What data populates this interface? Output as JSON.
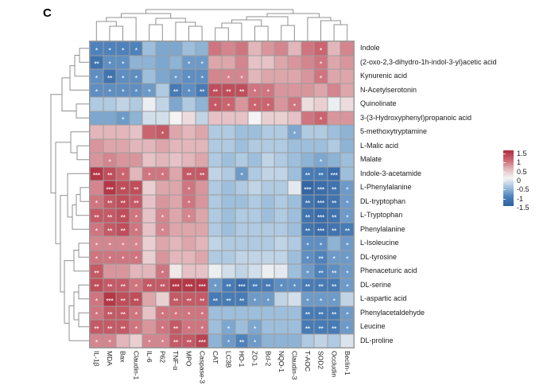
{
  "panel_label": "C",
  "chart_data": {
    "type": "heatmap",
    "title": "",
    "clustered": {
      "rows": true,
      "columns": true
    },
    "columns": [
      "IL-1β",
      "MDA",
      "Bax",
      "Claudin-1",
      "IL-6",
      "P62",
      "TNF-α",
      "MPO",
      "Caspase-3",
      "CAT",
      "LC3B",
      "HO-1",
      "ZO-1",
      "Bcl-2",
      "NQO-1",
      "Claudin-3",
      "T-AOC",
      "SOD2",
      "Occludin",
      "Beclin-1"
    ],
    "rows": [
      "Indole",
      "(2-oxo-2,3-dihydro-1h-indol-3-yl)acetic acid",
      "Kynurenic acid",
      "N-Acetylserotonin",
      "Quinolinate",
      "3-(3-Hydroxyphenyl)propanoic acid",
      "5-methoxytryptamine",
      "L-Malic acid",
      "Malate",
      "Indole-3-acetamide",
      "L-Phenylalanine",
      "DL-tryptophan",
      "L-Tryptophan",
      "Phenylalanine",
      "L-Isoleucine",
      "DL-tyrosine",
      "Phenaceturic acid",
      "DL-serine",
      "L-aspartic acid",
      "Phenylacetaldehyde",
      "Leucine",
      "DL-proline"
    ],
    "values": [
      [
        -1.0,
        -1.0,
        -1.0,
        -1.0,
        -0.5,
        -0.7,
        -0.7,
        -0.5,
        -0.6,
        0.9,
        0.8,
        0.9,
        0.5,
        0.7,
        0.8,
        0.5,
        0.9,
        1.0,
        0.5,
        0.8
      ],
      [
        -1.2,
        -0.9,
        -0.9,
        -0.6,
        -0.6,
        -0.7,
        -0.6,
        -0.8,
        -0.8,
        0.6,
        0.6,
        0.8,
        0.4,
        0.4,
        0.6,
        0.7,
        0.8,
        0.9,
        0.6,
        0.7
      ],
      [
        -0.9,
        -1.2,
        -0.9,
        -0.9,
        -0.5,
        -0.7,
        -0.8,
        -0.9,
        -0.9,
        0.8,
        0.8,
        0.8,
        0.5,
        0.6,
        0.6,
        0.6,
        0.7,
        0.9,
        0.6,
        0.6
      ],
      [
        -0.9,
        -0.9,
        -0.9,
        -0.9,
        -0.8,
        -0.4,
        -1.1,
        -0.9,
        -1.1,
        1.2,
        1.2,
        1.2,
        0.9,
        0.9,
        0.7,
        0.7,
        0.7,
        0.6,
        0.8,
        0.6
      ],
      [
        -0.4,
        -0.4,
        -0.3,
        -0.4,
        -0.05,
        -0.3,
        -0.7,
        -0.4,
        -0.6,
        1.1,
        1.0,
        0.7,
        1.0,
        1.0,
        0.7,
        0.9,
        0.2,
        0.3,
        -0.05,
        0.2
      ],
      [
        -0.7,
        -0.7,
        -0.8,
        -0.6,
        -0.2,
        -0.2,
        0.0,
        0.2,
        -0.3,
        0.4,
        0.4,
        0.4,
        0.0,
        0.3,
        0.3,
        0.4,
        0.9,
        1.0,
        0.7,
        0.7
      ],
      [
        0.5,
        0.5,
        0.5,
        0.4,
        1.0,
        1.1,
        0.6,
        0.5,
        0.6,
        -0.4,
        -0.4,
        -0.5,
        -0.5,
        -0.4,
        -0.4,
        -0.7,
        -0.4,
        -0.4,
        -0.5,
        -0.6
      ],
      [
        0.7,
        0.6,
        0.6,
        0.5,
        0.5,
        0.6,
        0.5,
        0.5,
        0.5,
        -0.4,
        -0.4,
        -0.5,
        -0.4,
        -0.4,
        -0.4,
        -0.5,
        -0.5,
        -0.5,
        -0.4,
        -0.6
      ],
      [
        0.7,
        0.8,
        0.7,
        0.7,
        0.4,
        0.5,
        0.4,
        0.5,
        0.6,
        -0.4,
        -0.5,
        -0.4,
        -0.5,
        -0.3,
        -0.4,
        -0.5,
        -0.6,
        -0.7,
        -0.6,
        -0.5
      ],
      [
        1.4,
        1.2,
        1.0,
        0.5,
        0.9,
        0.9,
        0.6,
        1.1,
        1.1,
        -0.3,
        -0.4,
        -0.8,
        -0.4,
        -0.3,
        -0.3,
        -0.5,
        -1.1,
        -1.1,
        -1.3,
        -0.5
      ],
      [
        0.8,
        1.4,
        1.2,
        1.2,
        0.3,
        0.6,
        0.6,
        0.9,
        0.7,
        -0.4,
        -0.5,
        -0.4,
        -0.3,
        -0.4,
        -0.4,
        -0.1,
        -1.4,
        -1.3,
        -1.2,
        -0.8
      ],
      [
        0.9,
        1.1,
        1.2,
        1.1,
        0.4,
        0.7,
        0.6,
        0.9,
        0.7,
        -0.4,
        -0.5,
        -0.5,
        -0.4,
        -0.5,
        -0.4,
        -0.5,
        -1.2,
        -1.3,
        -1.2,
        -0.8
      ],
      [
        1.1,
        1.1,
        1.2,
        0.9,
        0.4,
        0.8,
        0.6,
        0.8,
        0.6,
        -0.4,
        -0.5,
        -0.4,
        -0.4,
        -0.5,
        -0.4,
        -0.5,
        -1.2,
        -1.3,
        -1.2,
        -0.8
      ],
      [
        0.9,
        1.1,
        1.2,
        0.9,
        0.4,
        0.8,
        0.6,
        0.6,
        0.6,
        -0.4,
        -0.5,
        -0.4,
        -0.4,
        -0.4,
        -0.4,
        -0.5,
        -1.2,
        -1.3,
        -1.2,
        -1.1
      ],
      [
        0.8,
        0.8,
        0.8,
        0.8,
        0.3,
        0.6,
        0.5,
        0.6,
        0.5,
        -0.3,
        -0.4,
        -0.4,
        -0.4,
        -0.4,
        -0.3,
        -0.4,
        -0.9,
        -0.9,
        -0.6,
        -0.8
      ],
      [
        0.9,
        0.9,
        0.9,
        0.9,
        0.3,
        0.7,
        0.5,
        0.5,
        0.6,
        -0.4,
        -0.4,
        -0.3,
        -0.3,
        -0.3,
        -0.3,
        -0.5,
        -0.9,
        -1.0,
        -0.8,
        -0.8
      ],
      [
        1.1,
        0.7,
        0.7,
        0.5,
        0.5,
        0.9,
        0.1,
        0.4,
        0.4,
        -0.05,
        -0.2,
        -0.3,
        -0.2,
        -0.05,
        -0.1,
        -0.5,
        -0.8,
        -1.0,
        -0.9,
        -0.8
      ],
      [
        1.2,
        1.1,
        1.1,
        0.9,
        1.1,
        1.1,
        1.4,
        1.4,
        1.4,
        -0.8,
        -1.1,
        -1.3,
        -1.1,
        -1.1,
        -0.9,
        -0.9,
        -1.1,
        -1.1,
        -1.1,
        -0.8
      ],
      [
        0.9,
        1.4,
        1.2,
        1.2,
        0.6,
        0.3,
        1.1,
        1.1,
        1.1,
        -1.1,
        -1.1,
        -1.1,
        -0.8,
        -0.8,
        -0.3,
        -0.2,
        -0.8,
        -0.8,
        -0.8,
        -0.3
      ],
      [
        0.9,
        1.1,
        1.1,
        0.9,
        0.4,
        0.9,
        0.9,
        0.9,
        0.9,
        -0.5,
        -0.5,
        -0.5,
        -0.5,
        -0.5,
        -0.5,
        -0.5,
        -1.1,
        -1.1,
        -1.1,
        -0.8
      ],
      [
        1.1,
        1.1,
        1.1,
        0.9,
        0.7,
        0.9,
        1.1,
        0.9,
        0.9,
        -0.5,
        -0.7,
        -0.5,
        -0.7,
        -0.5,
        -0.5,
        -0.5,
        -1.1,
        -1.1,
        -1.1,
        -0.8
      ],
      [
        0.8,
        0.8,
        0.5,
        0.3,
        0.8,
        0.8,
        1.1,
        1.1,
        1.3,
        -0.6,
        -0.8,
        -1.0,
        -0.8,
        -0.6,
        -0.6,
        -0.6,
        -0.4,
        -0.3,
        -0.4,
        -0.15
      ]
    ],
    "significance": [
      [
        "*",
        "*",
        "*",
        "*",
        "",
        "",
        "",
        "",
        "",
        "",
        "",
        "",
        "",
        "",
        "",
        "",
        "",
        "*",
        "",
        ""
      ],
      [
        "**",
        "*",
        "*",
        "",
        "",
        "",
        "",
        "*",
        "*",
        "",
        "",
        "",
        "",
        "",
        "",
        "",
        "",
        "*",
        "",
        ""
      ],
      [
        "*",
        "**",
        "*",
        "*",
        "",
        "",
        "*",
        "*",
        "*",
        "",
        "*",
        "*",
        "",
        "",
        "",
        "",
        "",
        "*",
        "",
        ""
      ],
      [
        "*",
        "*",
        "*",
        "*",
        "*",
        "",
        "**",
        "*",
        "**",
        "**",
        "**",
        "**",
        "*",
        "*",
        "",
        "",
        "",
        "",
        "",
        ""
      ],
      [
        "",
        "",
        "",
        "",
        "",
        "",
        "",
        "",
        "",
        "*",
        "*",
        "",
        "*",
        "*",
        "",
        "*",
        "",
        "",
        "",
        ""
      ],
      [
        "",
        "",
        "*",
        "",
        "",
        "",
        "",
        "",
        "",
        "",
        "",
        "",
        "",
        "",
        "",
        "",
        "",
        "*",
        "",
        ""
      ],
      [
        "",
        "",
        "",
        "",
        "",
        "*",
        "",
        "",
        "",
        "",
        "",
        "",
        "",
        "",
        "",
        "*",
        "",
        "",
        "",
        ""
      ],
      [
        "",
        "",
        "",
        "",
        "",
        "",
        "",
        "",
        "",
        "",
        "",
        "",
        "",
        "",
        "",
        "",
        "",
        "",
        "",
        ""
      ],
      [
        "",
        "*",
        "",
        "",
        "",
        "",
        "",
        "",
        "",
        "",
        "",
        "",
        "",
        "",
        "",
        "",
        "",
        "*",
        "",
        ""
      ],
      [
        "***",
        "**",
        "*",
        "",
        "*",
        "*",
        "",
        "**",
        "**",
        "",
        "",
        "*",
        "",
        "",
        "",
        "",
        "**",
        "**",
        "***",
        ""
      ],
      [
        "",
        "***",
        "**",
        "**",
        "",
        "",
        "",
        "*",
        "",
        "",
        "",
        "",
        "",
        "",
        "",
        "",
        "***",
        "***",
        "**",
        "*"
      ],
      [
        "*",
        "**",
        "**",
        "**",
        "",
        "",
        "",
        "*",
        "",
        "",
        "",
        "",
        "",
        "",
        "",
        "",
        "**",
        "***",
        "**",
        "*"
      ],
      [
        "**",
        "**",
        "**",
        "*",
        "",
        "*",
        "",
        "*",
        "",
        "",
        "",
        "",
        "",
        "",
        "",
        "",
        "**",
        "***",
        "**",
        "*"
      ],
      [
        "*",
        "**",
        "**",
        "*",
        "",
        "*",
        "",
        "",
        "",
        "",
        "",
        "",
        "",
        "",
        "",
        "",
        "**",
        "***",
        "**",
        "**"
      ],
      [
        "*",
        "*",
        "*",
        "*",
        "",
        "",
        "",
        "",
        "",
        "",
        "",
        "",
        "",
        "",
        "",
        "",
        "*",
        "*",
        "",
        "*"
      ],
      [
        "*",
        "*",
        "*",
        "*",
        "",
        "",
        "",
        "",
        "",
        "",
        "",
        "",
        "",
        "",
        "",
        "",
        "*",
        "**",
        "*",
        "*"
      ],
      [
        "**",
        "",
        "",
        "",
        "",
        "*",
        "",
        "",
        "",
        "",
        "",
        "",
        "",
        "",
        "",
        "",
        "*",
        "**",
        "**",
        "*"
      ],
      [
        "**",
        "**",
        "**",
        "*",
        "**",
        "**",
        "***",
        "***",
        "***",
        "*",
        "**",
        "***",
        "**",
        "**",
        "*",
        "*",
        "**",
        "**",
        "**",
        "*"
      ],
      [
        "*",
        "***",
        "**",
        "**",
        "",
        "",
        "**",
        "**",
        "**",
        "**",
        "**",
        "**",
        "*",
        "*",
        "",
        "",
        "*",
        "*",
        "*",
        ""
      ],
      [
        "*",
        "**",
        "**",
        "*",
        "",
        "*",
        "*",
        "*",
        "*",
        "",
        "",
        "",
        "",
        "",
        "",
        "",
        "**",
        "**",
        "**",
        "*"
      ],
      [
        "**",
        "**",
        "**",
        "*",
        "",
        "*",
        "**",
        "*",
        "*",
        "",
        "*",
        "",
        "*",
        "",
        "",
        "",
        "**",
        "**",
        "**",
        "*"
      ],
      [
        "*",
        "*",
        "",
        "",
        "*",
        "*",
        "**",
        "**",
        "***",
        "",
        "*",
        "**",
        "*",
        "",
        "",
        "",
        "",
        "",
        "",
        ""
      ]
    ],
    "value_scale": {
      "min": -1.5,
      "max": 1.5
    },
    "legend_ticks": [
      "1.5",
      "1",
      "0.5",
      "0",
      "-0.5",
      "-1",
      "-1.5"
    ],
    "colors": {
      "stops": [
        {
          "value": -1.5,
          "hex": "#2d5f9e"
        },
        {
          "value": -1.0,
          "hex": "#4e82bb"
        },
        {
          "value": -0.5,
          "hex": "#9dbfdc"
        },
        {
          "value": 0.0,
          "hex": "#f5f4f4"
        },
        {
          "value": 0.5,
          "hex": "#e2b6ba"
        },
        {
          "value": 1.0,
          "hex": "#ca6570"
        },
        {
          "value": 1.5,
          "hex": "#ae2c3c"
        }
      ],
      "grid_line": "#9d9d9d",
      "dendrogram": "#909090",
      "significance_text": "#ffffff"
    }
  }
}
